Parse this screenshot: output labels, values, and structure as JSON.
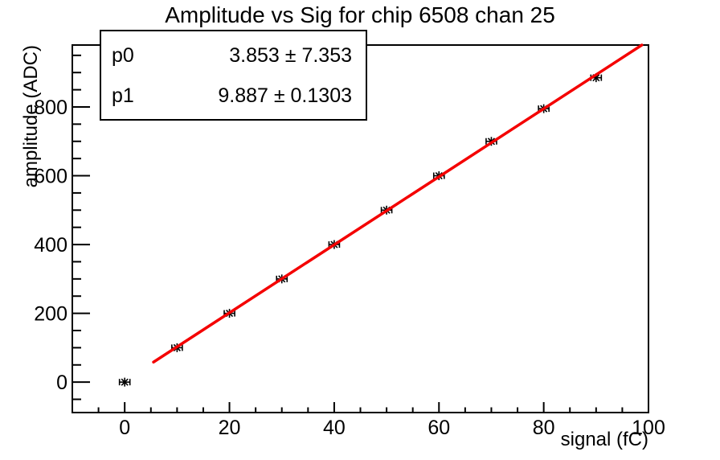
{
  "chart_data": {
    "type": "scatter",
    "title": "Amplitude vs Sig for chip 6508 chan 25",
    "xlabel": "signal (fC)",
    "ylabel": "amplitude (ADC)",
    "xlim": [
      -10,
      100
    ],
    "ylim": [
      -88.5,
      980
    ],
    "x_major_ticks": [
      0,
      20,
      40,
      60,
      80,
      100
    ],
    "x_minor_step": 5,
    "y_major_ticks": [
      0,
      200,
      400,
      600,
      800
    ],
    "y_minor_step": 50,
    "grid": false,
    "legend_position": "top-left",
    "points": {
      "x": [
        0,
        10,
        20,
        30,
        40,
        50,
        60,
        70,
        80,
        90
      ],
      "y": [
        0,
        100,
        200,
        300,
        400,
        500,
        600,
        700,
        795,
        885
      ],
      "x_err": 1,
      "marker": "star-asterisk",
      "marker_color": "#000000"
    },
    "fit": {
      "type": "linear",
      "p0": 3.853,
      "p1": 9.887,
      "draw_from_x": 5.5,
      "color": "#f40000"
    }
  },
  "stats_box": {
    "rows": [
      {
        "name": "p0",
        "value": "3.853 ± 7.353"
      },
      {
        "name": "p1",
        "value": "9.887 ± 0.1303"
      }
    ]
  },
  "colors": {
    "axis": "#000000",
    "background": "#ffffff",
    "fit_line": "#f40000",
    "marker": "#000000"
  }
}
